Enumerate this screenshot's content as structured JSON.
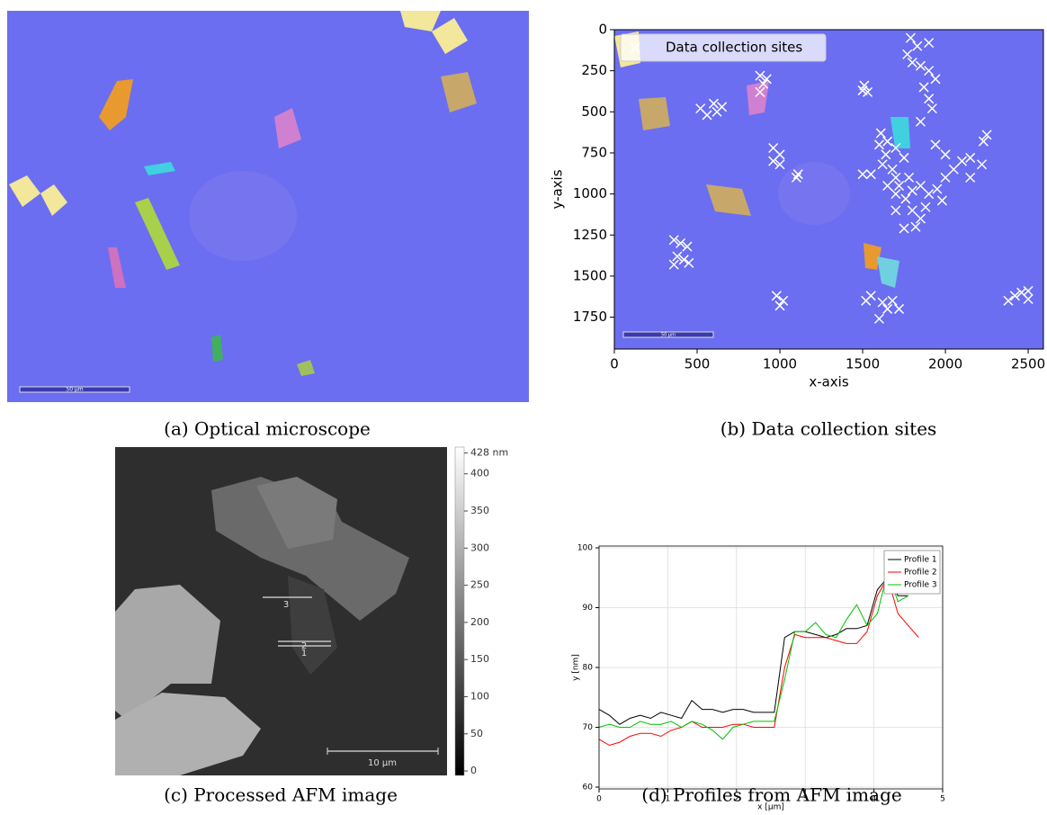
{
  "panels": {
    "a": {
      "caption": "(a) Optical microscope",
      "scale_bar": "50 µm"
    },
    "c": {
      "caption": "(c) Processed AFM image",
      "scale_bar": "10 µm",
      "profile_labels": [
        "3",
        "2",
        "1"
      ],
      "colorbar": {
        "lim": [
          -6,
          436
        ],
        "ticks": [
          0,
          50,
          100,
          150,
          200,
          250,
          300,
          350,
          400,
          {
            "value": 428,
            "label": "428 nm"
          }
        ]
      }
    }
  },
  "chart_data": [
    {
      "type": "scatter",
      "caption": "(b) Data collection sites",
      "xlabel": "x-axis",
      "ylabel": "y-axis",
      "xlim": [
        0,
        2592
      ],
      "ylim": [
        1944,
        0
      ],
      "xticks": [
        0,
        500,
        1000,
        1500,
        2000,
        2500
      ],
      "yticks": [
        0,
        250,
        500,
        750,
        1000,
        1250,
        1500,
        1750
      ],
      "legend": "upper left",
      "scale_bar": "50 µm",
      "series": [
        {
          "name": "Data collection sites",
          "color": "#ffffff",
          "x": [
            1790,
            1830,
            1900,
            1770,
            1800,
            1850,
            1900,
            1940,
            1870,
            1900,
            1920,
            1850,
            880,
            900,
            880,
            920,
            1510,
            1530,
            1500,
            520,
            560,
            600,
            650,
            620,
            960,
            1000,
            960,
            1000,
            1110,
            1100,
            1500,
            1550,
            1610,
            1650,
            1600,
            1640,
            1700,
            1750,
            1620,
            1680,
            1700,
            1650,
            1720,
            1780,
            1800,
            1850,
            1900,
            1950,
            1980,
            1880,
            1800,
            1760,
            1700,
            1820,
            1750,
            2050,
            2100,
            2150,
            2220,
            2230,
            2250,
            1940,
            2000,
            2150,
            2000,
            1850,
            1700,
            360,
            400,
            440,
            380,
            420,
            360,
            450,
            980,
            1020,
            1000,
            1550,
            1620,
            1680,
            1720,
            1600,
            1650,
            1520,
            2380,
            2420,
            2460,
            2500,
            2500
          ],
          "values": [
            50,
            100,
            80,
            150,
            200,
            220,
            250,
            300,
            350,
            420,
            480,
            560,
            280,
            330,
            380,
            300,
            340,
            380,
            370,
            480,
            520,
            450,
            470,
            500,
            720,
            760,
            800,
            820,
            880,
            900,
            880,
            880,
            630,
            680,
            700,
            760,
            720,
            780,
            820,
            850,
            900,
            950,
            950,
            900,
            980,
            950,
            1000,
            970,
            1040,
            1080,
            1100,
            1030,
            1000,
            1200,
            1210,
            850,
            800,
            780,
            820,
            680,
            640,
            700,
            760,
            900,
            900,
            1150,
            1100,
            1280,
            1300,
            1320,
            1380,
            1400,
            1430,
            1420,
            1620,
            1650,
            1680,
            1620,
            1660,
            1650,
            1700,
            1760,
            1700,
            1650,
            1650,
            1620,
            1600,
            1640,
            1590
          ]
        }
      ]
    },
    {
      "type": "line",
      "caption": "(d) Profiles from AFM image",
      "xlabel": "x [µm]",
      "ylabel": "y [nm]",
      "xlim": [
        0,
        5
      ],
      "ylim": [
        59.7,
        100.3
      ],
      "xticks": [
        0,
        1,
        2,
        3,
        4,
        5
      ],
      "yticks": [
        60,
        70,
        80,
        90,
        100
      ],
      "grid": true,
      "legend": "upper right",
      "x": [
        0,
        0.15,
        0.3,
        0.45,
        0.6,
        0.75,
        0.9,
        1.05,
        1.2,
        1.35,
        1.5,
        1.65,
        1.8,
        1.95,
        2.1,
        2.25,
        2.4,
        2.55,
        2.7,
        2.85,
        3.0,
        3.15,
        3.3,
        3.45,
        3.6,
        3.75,
        3.9,
        4.05,
        4.2,
        4.35,
        4.5,
        4.65
      ],
      "series": [
        {
          "name": "Profile 1",
          "color": "#000000",
          "values": [
            73,
            72,
            70.5,
            71.5,
            72,
            71.5,
            72.5,
            72,
            71.5,
            74.5,
            73,
            73,
            72.5,
            73,
            73,
            72.5,
            72.5,
            72.5,
            85,
            86,
            86,
            85.5,
            85,
            85.5,
            86.5,
            86.5,
            87,
            93,
            95,
            92,
            92,
            null
          ]
        },
        {
          "name": "Profile 2",
          "color": "#ff0000",
          "values": [
            68,
            67,
            67.5,
            68.5,
            69,
            69,
            68.5,
            69.5,
            70,
            71,
            70,
            70,
            70,
            70.5,
            70.5,
            70,
            70,
            70,
            80,
            85.5,
            85,
            85,
            85,
            84.5,
            84,
            84,
            86,
            92,
            95,
            89,
            87,
            85
          ]
        },
        {
          "name": "Profile 3",
          "color": "#00c000",
          "values": [
            70,
            70.5,
            70,
            70,
            71,
            70.5,
            70.5,
            71,
            70,
            71,
            70.5,
            69.5,
            68,
            70,
            70.5,
            71,
            71,
            71,
            78,
            86,
            86,
            87.5,
            85.5,
            85,
            88,
            90.5,
            87,
            89,
            96,
            91,
            92,
            null
          ]
        }
      ]
    }
  ]
}
